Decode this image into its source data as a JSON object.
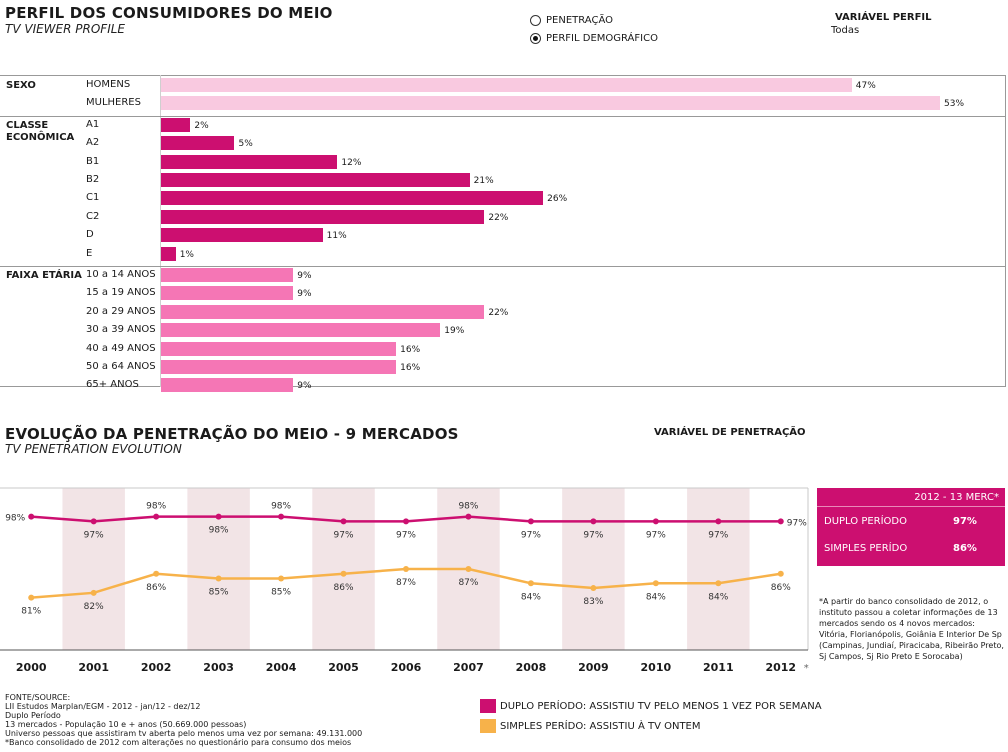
{
  "header": {
    "title": "PERFIL DOS CONSUMIDORES DO MEIO",
    "subtitle": "TV VIEWER PROFILE",
    "radio_options": [
      {
        "label": "PENETRAÇÃO",
        "selected": false
      },
      {
        "label": "PERFIL DEMOGRÁFICO",
        "selected": true
      }
    ],
    "variable_label": "VARIÁVEL PERFIL",
    "variable_value": "Todas"
  },
  "chart_data": [
    {
      "type": "bar",
      "orientation": "horizontal",
      "xlim": [
        0,
        55
      ],
      "groups": [
        {
          "name": "SEXO",
          "categories": [
            "HOMENS",
            "MULHERES"
          ],
          "values": [
            47,
            53
          ],
          "value_labels": [
            "47%",
            "53%"
          ],
          "color": "#f9c9e0"
        },
        {
          "name": "CLASSE\nECONÔMICA",
          "categories": [
            "A1",
            "A2",
            "B1",
            "B2",
            "C1",
            "C2",
            "D",
            "E"
          ],
          "values": [
            2,
            5,
            12,
            21,
            26,
            22,
            11,
            1
          ],
          "value_labels": [
            "2%",
            "5%",
            "12%",
            "21%",
            "26%",
            "22%",
            "11%",
            "1%"
          ],
          "color": "#cc0f70"
        },
        {
          "name": "FAIXA ETÁRIA",
          "categories": [
            "10 a 14 ANOS",
            "15 a 19 ANOS",
            "20 a 29 ANOS",
            "30 a 39 ANOS",
            "40 a 49 ANOS",
            "50 a 64 ANOS",
            "65+ ANOS"
          ],
          "values": [
            9,
            9,
            22,
            19,
            16,
            16,
            9
          ],
          "value_labels": [
            "9%",
            "9%",
            "22%",
            "19%",
            "16%",
            "16%",
            "9%"
          ],
          "color": "#f576b5"
        }
      ]
    },
    {
      "type": "line",
      "title": "EVOLUÇÃO DA PENETRAÇÃO DO MEIO - 9 MERCADOS",
      "subtitle": "TV PENETRATION EVOLUTION",
      "variable_label": "VARIÁVEL DE PENETRAÇÃO",
      "x": [
        "2000",
        "2001",
        "2002",
        "2003",
        "2004",
        "2005",
        "2006",
        "2007",
        "2008",
        "2009",
        "2010",
        "2011",
        "2012"
      ],
      "x_suffix_last": "*",
      "ylim": [
        70,
        104
      ],
      "series": [
        {
          "name": "DUPLO PERÍODO: ASSISTIU TV PELO MENOS 1 VEZ POR SEMANA",
          "color": "#cc0f70",
          "values": [
            98,
            97,
            98,
            98,
            98,
            97,
            97,
            98,
            97,
            97,
            97,
            97,
            97
          ],
          "labels": [
            "98%",
            "97%",
            "98%",
            "98%",
            "98%",
            "97%",
            "97%",
            "98%",
            "97%",
            "97%",
            "97%",
            "97%",
            "97%"
          ],
          "label_side": [
            "left",
            "below",
            "above",
            "below",
            "above",
            "below",
            "below",
            "above",
            "below",
            "below",
            "below",
            "below",
            "right"
          ]
        },
        {
          "name": "SIMPLES PERÍDO: ASSISTIU À TV ONTEM",
          "color": "#f7b24a",
          "values": [
            81,
            82,
            86,
            85,
            85,
            86,
            87,
            87,
            84,
            83,
            84,
            84,
            86
          ],
          "labels": [
            "81%",
            "82%",
            "86%",
            "85%",
            "85%",
            "86%",
            "87%",
            "87%",
            "84%",
            "83%",
            "84%",
            "84%",
            "86%"
          ]
        }
      ],
      "band_color": "#f2e4e6"
    }
  ],
  "summary": {
    "header": "2012 - 13 MERC*",
    "rows": [
      {
        "label": "DUPLO PERÍODO",
        "value": "97%"
      },
      {
        "label": "SIMPLES PERÍDO",
        "value": "86%"
      }
    ]
  },
  "footnote": "*A partir do banco consolidado de 2012, o instituto passou a coletar informações de 13 mercados sendo os 4 novos mercados: Vitória, Florianópolis, Goiânia E Interior De Sp (Campinas, Jundiaí, Piracicaba, Ribeirão Preto, Sj Campos, Sj Rio Preto E Sorocaba)",
  "source": {
    "heading": "FONTE/SOURCE:",
    "lines": [
      "LII Estudos Marplan/EGM - 2012 - jan/12 - dez/12",
      "Duplo Período",
      "13 mercados - População 10 e + anos (50.669.000 pessoas)",
      "Universo pessoas que assistiram tv aberta pelo menos uma vez por semana: 49.131.000",
      "*Banco consolidado de 2012 com alterações no questionário para consumo dos meios"
    ]
  },
  "legend": [
    {
      "label": "DUPLO PERÍODO: ASSISTIU TV PELO MENOS 1 VEZ POR SEMANA",
      "color": "#cc0f70"
    },
    {
      "label": "SIMPLES PERÍDO: ASSISTIU À TV ONTEM",
      "color": "#f7b24a"
    }
  ]
}
